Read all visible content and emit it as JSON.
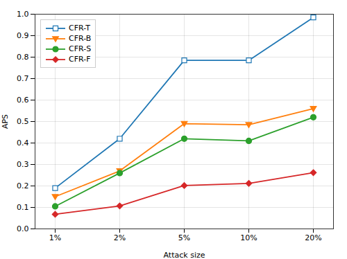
{
  "chart_data": {
    "type": "line",
    "categories": [
      "1%",
      "2%",
      "5%",
      "10%",
      "20%"
    ],
    "series": [
      {
        "name": "CFR-T",
        "color": "#1f77b4",
        "marker": "open-square",
        "values": [
          0.19,
          0.42,
          0.785,
          0.785,
          0.985
        ]
      },
      {
        "name": "CFR-B",
        "color": "#ff7f0e",
        "marker": "triangle-down",
        "values": [
          0.15,
          0.27,
          0.49,
          0.485,
          0.56
        ]
      },
      {
        "name": "CFR-S",
        "color": "#2ca02c",
        "marker": "circle",
        "values": [
          0.105,
          0.26,
          0.42,
          0.41,
          0.52
        ]
      },
      {
        "name": "CFR-F",
        "color": "#d62728",
        "marker": "diamond",
        "values": [
          0.068,
          0.107,
          0.202,
          0.212,
          0.262
        ]
      }
    ],
    "xlabel": "Attack size",
    "ylabel": "APS",
    "ylim": [
      0.0,
      1.0
    ],
    "yticks": [
      {
        "value": 0.0,
        "label": "0.0"
      },
      0.1,
      0.2,
      0.3,
      0.4,
      0.5,
      0.6,
      0.7,
      0.8,
      0.9,
      {
        "value": 1.0,
        "label": "1.0"
      }
    ],
    "grid": true,
    "legend": "upper left"
  }
}
